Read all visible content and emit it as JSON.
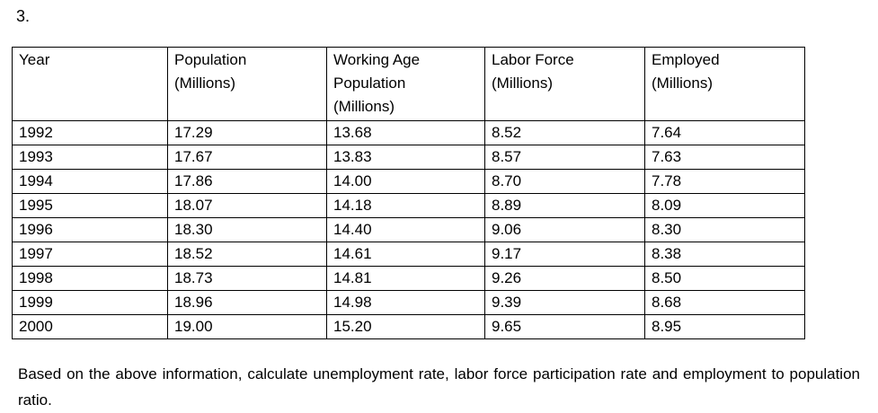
{
  "question_number": "3.",
  "table": {
    "headers": [
      [
        "Year"
      ],
      [
        "Population",
        "(Millions)"
      ],
      [
        "Working Age",
        "Population",
        "(Millions)"
      ],
      [
        "Labor Force",
        "(Millions)"
      ],
      [
        "Employed",
        "(Millions)"
      ]
    ],
    "rows": [
      [
        "1992",
        "17.29",
        "13.68",
        "8.52",
        "7.64"
      ],
      [
        "1993",
        "17.67",
        "13.83",
        "8.57",
        "7.63"
      ],
      [
        "1994",
        "17.86",
        "14.00",
        "8.70",
        "7.78"
      ],
      [
        "1995",
        "18.07",
        "14.18",
        "8.89",
        "8.09"
      ],
      [
        "1996",
        "18.30",
        "14.40",
        "9.06",
        "8.30"
      ],
      [
        "1997",
        "18.52",
        "14.61",
        "9.17",
        "8.38"
      ],
      [
        "1998",
        "18.73",
        "14.81",
        "9.26",
        "8.50"
      ],
      [
        "1999",
        "18.96",
        "14.98",
        "9.39",
        "8.68"
      ],
      [
        "2000",
        "19.00",
        "15.20",
        "9.65",
        "8.95"
      ]
    ]
  },
  "description": "Based on the above information, calculate unemployment rate, labor force participation rate and employment to population ratio."
}
